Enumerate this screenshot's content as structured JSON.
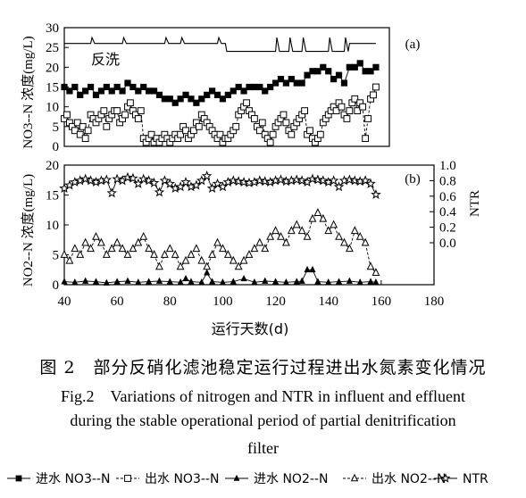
{
  "figure": {
    "caption_zh": "图 2　部分反硝化滤池稳定运行过程进出水氮素变化情况",
    "caption_en_1": "Fig.2　Variations of nitrogen and NTR in influent and effluent",
    "caption_en_2": "during the stable operational period of partial denitrification",
    "caption_en_3": "filter"
  },
  "colors": {
    "ink": "#000000",
    "background": "#ffffff"
  },
  "chart_data": [
    {
      "type": "line",
      "panel_label": "(a)",
      "annotation": "反洗",
      "ylabel": "NO3--N 浓度(mg/L)",
      "ylim": [
        0,
        30
      ],
      "yticks": [
        "0",
        "5",
        "10",
        "15",
        "20",
        "25",
        "30"
      ],
      "xlim": [
        40,
        180
      ],
      "series": [
        {
          "name": "进水 NO3--N",
          "marker": "filled-square",
          "x": [
            40,
            42,
            44,
            46,
            48,
            50,
            52,
            54,
            56,
            58,
            60,
            62,
            64,
            66,
            68,
            70,
            72,
            74,
            76,
            78,
            80,
            82,
            84,
            86,
            88,
            90,
            92,
            94,
            96,
            98,
            100,
            102,
            104,
            106,
            108,
            110,
            112,
            114,
            116,
            118,
            120,
            122,
            124,
            126,
            128,
            130,
            132,
            134,
            136,
            138,
            140,
            142,
            144,
            146,
            148,
            150,
            152,
            154,
            156,
            158
          ],
          "y": [
            15,
            14,
            15,
            13,
            14,
            15,
            13,
            14,
            15,
            14,
            15,
            14,
            16,
            15,
            14,
            15,
            14,
            14,
            13,
            12,
            12,
            11,
            12,
            13,
            12,
            11,
            12,
            13,
            14,
            13,
            12,
            13,
            14,
            15,
            14,
            15,
            15,
            15,
            14,
            15,
            16,
            17,
            16,
            17,
            16,
            16,
            18,
            19,
            19,
            20,
            19,
            17,
            18,
            16,
            20,
            20,
            21,
            19,
            19,
            20
          ]
        },
        {
          "name": "出水 NO3--N",
          "marker": "open-square",
          "x": [
            40,
            41,
            42,
            43,
            44,
            45,
            46,
            47,
            48,
            49,
            50,
            51,
            52,
            53,
            54,
            55,
            56,
            57,
            58,
            59,
            60,
            61,
            62,
            63,
            64,
            65,
            66,
            67,
            68,
            69,
            70,
            71,
            72,
            73,
            74,
            75,
            76,
            77,
            78,
            79,
            80,
            81,
            82,
            83,
            84,
            85,
            86,
            87,
            88,
            89,
            90,
            91,
            92,
            93,
            94,
            95,
            96,
            97,
            98,
            99,
            100,
            101,
            102,
            103,
            104,
            105,
            106,
            107,
            108,
            109,
            110,
            111,
            112,
            113,
            114,
            115,
            116,
            117,
            118,
            119,
            120,
            121,
            122,
            123,
            124,
            125,
            126,
            127,
            128,
            129,
            130,
            131,
            132,
            133,
            134,
            135,
            136,
            137,
            138,
            139,
            140,
            141,
            142,
            143,
            144,
            145,
            146,
            147,
            148,
            149,
            150,
            151,
            152,
            153,
            154,
            155,
            156,
            157,
            158
          ],
          "y": [
            7,
            8,
            6,
            5,
            4,
            6,
            3,
            5,
            2,
            4,
            8,
            7,
            6,
            7,
            8,
            9,
            5,
            7,
            8,
            9,
            9,
            6,
            7,
            8,
            10,
            11,
            9,
            8,
            7,
            9,
            2,
            1,
            2,
            3,
            1,
            2,
            1,
            2,
            3,
            2,
            1,
            2,
            3,
            2,
            3,
            5,
            4,
            2,
            3,
            4,
            6,
            5,
            8,
            7,
            6,
            5,
            4,
            3,
            2,
            3,
            1,
            2,
            2,
            3,
            4,
            5,
            8,
            9,
            10,
            11,
            9,
            8,
            7,
            5,
            4,
            6,
            3,
            2,
            1,
            3,
            5,
            6,
            7,
            8,
            6,
            4,
            3,
            5,
            6,
            7,
            8,
            9,
            3,
            4,
            2,
            1,
            2,
            3,
            6,
            7,
            8,
            9,
            10,
            9,
            11,
            10,
            8,
            7,
            9,
            11,
            12,
            9,
            11,
            10,
            2,
            7,
            12,
            13,
            15
          ]
        },
        {
          "name": "backwash",
          "marker": "line",
          "x": [
            40,
            50,
            50.5,
            51.5,
            52,
            62,
            62.5,
            63.5,
            64,
            78,
            78.5,
            79.5,
            80,
            84,
            84.5,
            85.5,
            86,
            98,
            98.5,
            99.5,
            100,
            101,
            101.5,
            102,
            120,
            120.5,
            121.5,
            122,
            125,
            125.5,
            126.5,
            127,
            130,
            130.5,
            131.5,
            132,
            140,
            140.5,
            141.5,
            142,
            146,
            146.5,
            147.5,
            148,
            158
          ],
          "y": [
            26,
            26,
            27.5,
            26,
            26,
            26,
            27.5,
            26,
            26,
            26,
            27.5,
            26,
            26,
            26,
            27.5,
            26,
            26,
            26,
            27.5,
            26,
            26,
            26,
            24,
            24,
            24,
            27.5,
            24,
            24,
            24,
            27.5,
            24,
            24,
            24,
            27.5,
            24,
            24,
            24,
            27.5,
            24,
            24,
            24,
            27.5,
            24,
            26,
            26
          ]
        }
      ]
    },
    {
      "type": "line",
      "panel_label": "(b)",
      "ylabel": "NO2--N 浓度(mg/L)",
      "y2label": "NTR",
      "ylim": [
        0,
        20
      ],
      "yticks": [
        "0",
        "5",
        "10",
        "15",
        "20"
      ],
      "y2lim": [
        0,
        1.0
      ],
      "y2ticks": [
        "0.0",
        "0.2",
        "0.4",
        "0.6",
        "0.8",
        "1.0"
      ],
      "xlim": [
        40,
        180
      ],
      "xlabel": "运行天数(d)",
      "xticks": [
        "40",
        "60",
        "80",
        "100",
        "120",
        "140",
        "160",
        "180"
      ],
      "series": [
        {
          "name": "进水 NO2--N",
          "marker": "filled-triangle",
          "x": [
            40,
            44,
            48,
            52,
            56,
            60,
            64,
            68,
            72,
            76,
            80,
            84,
            86,
            88,
            92,
            94,
            96,
            100,
            104,
            108,
            112,
            116,
            120,
            124,
            128,
            130,
            132,
            134,
            136,
            140,
            144,
            148,
            152,
            156,
            158
          ],
          "y": [
            0.5,
            0.4,
            0.6,
            0.5,
            0.3,
            0.5,
            0.6,
            0.4,
            0.5,
            0.6,
            0.5,
            0.4,
            1.0,
            0.5,
            0.4,
            2.0,
            0.5,
            0.4,
            0.5,
            1.0,
            0.4,
            0.6,
            0.5,
            0.4,
            0.5,
            0.6,
            2.5,
            2.5,
            0.5,
            0.4,
            0.5,
            0.6,
            0.4,
            0.5,
            0.4
          ]
        },
        {
          "name": "出水 NO2--N",
          "marker": "open-triangle",
          "x": [
            40,
            42,
            44,
            46,
            48,
            50,
            52,
            54,
            56,
            58,
            60,
            62,
            64,
            66,
            68,
            70,
            72,
            74,
            76,
            78,
            80,
            82,
            84,
            86,
            88,
            90,
            92,
            94,
            96,
            98,
            100,
            102,
            104,
            106,
            108,
            110,
            112,
            114,
            116,
            118,
            120,
            122,
            124,
            126,
            128,
            130,
            132,
            134,
            136,
            138,
            140,
            142,
            144,
            146,
            148,
            150,
            152,
            154,
            156,
            158
          ],
          "y": [
            5,
            4,
            6,
            5,
            7,
            6,
            8,
            7,
            5,
            6,
            7,
            6,
            5,
            6,
            7,
            8,
            6,
            5,
            3,
            5,
            6,
            5,
            3,
            4,
            5,
            6,
            4,
            3,
            5,
            7,
            6,
            5,
            4,
            3,
            4,
            5,
            6,
            7,
            6,
            8,
            9,
            8,
            7,
            9,
            10,
            9,
            8,
            11,
            12,
            11,
            9,
            10,
            8,
            7,
            6,
            9,
            8,
            7,
            3,
            2
          ]
        },
        {
          "name": "NTR",
          "marker": "open-star",
          "axis": "right",
          "x": [
            40,
            42,
            44,
            46,
            48,
            50,
            52,
            54,
            56,
            58,
            60,
            62,
            64,
            66,
            68,
            70,
            72,
            74,
            76,
            78,
            80,
            82,
            84,
            86,
            88,
            90,
            92,
            94,
            96,
            98,
            100,
            102,
            104,
            106,
            108,
            110,
            112,
            114,
            116,
            118,
            120,
            122,
            124,
            126,
            128,
            130,
            132,
            134,
            136,
            138,
            140,
            142,
            144,
            146,
            148,
            150,
            152,
            154,
            156,
            158
          ],
          "y": [
            0.7,
            0.74,
            0.78,
            0.8,
            0.82,
            0.8,
            0.78,
            0.8,
            0.81,
            0.64,
            0.82,
            0.8,
            0.84,
            0.83,
            0.76,
            0.82,
            0.8,
            0.77,
            0.65,
            0.8,
            0.76,
            0.7,
            0.72,
            0.78,
            0.72,
            0.74,
            0.8,
            0.86,
            0.7,
            0.76,
            0.72,
            0.78,
            0.8,
            0.79,
            0.78,
            0.77,
            0.78,
            0.8,
            0.79,
            0.78,
            0.8,
            0.81,
            0.79,
            0.8,
            0.81,
            0.8,
            0.78,
            0.82,
            0.81,
            0.8,
            0.78,
            0.8,
            0.72,
            0.8,
            0.81,
            0.8,
            0.79,
            0.8,
            0.76,
            0.62
          ]
        }
      ]
    }
  ],
  "legend": {
    "items": [
      {
        "label": "进水 NO3--N",
        "marker": "filled-square",
        "line": "solid"
      },
      {
        "label": "出水 NO3--N",
        "marker": "open-square",
        "line": "dashed"
      },
      {
        "label": "进水 NO2--N",
        "marker": "filled-triangle",
        "line": "solid"
      },
      {
        "label": "出水 NO2--N",
        "marker": "open-triangle",
        "line": "dashed"
      },
      {
        "label": "NTR",
        "marker": "open-star",
        "line": "solid"
      }
    ]
  }
}
